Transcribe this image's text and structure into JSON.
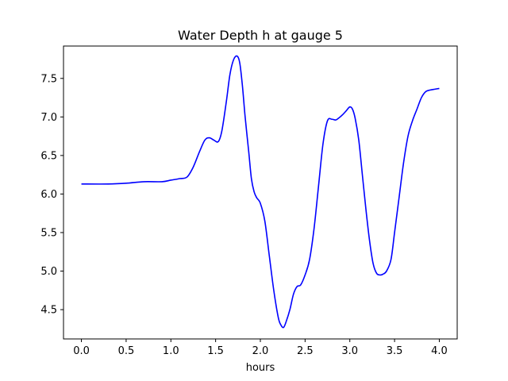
{
  "chart_data": {
    "type": "line",
    "title": "Water Depth h at gauge 5",
    "xlabel": "hours",
    "ylabel": "",
    "xlim": [
      -0.2,
      4.2
    ],
    "ylim": [
      4.12,
      7.92
    ],
    "x_ticks": [
      0.0,
      0.5,
      1.0,
      1.5,
      2.0,
      2.5,
      3.0,
      3.5,
      4.0
    ],
    "x_tick_labels": [
      "0.0",
      "0.5",
      "1.0",
      "1.5",
      "2.0",
      "2.5",
      "3.0",
      "3.5",
      "4.0"
    ],
    "y_ticks": [
      4.5,
      5.0,
      5.5,
      6.0,
      6.5,
      7.0,
      7.5
    ],
    "y_tick_labels": [
      "4.5",
      "5.0",
      "5.5",
      "6.0",
      "6.5",
      "7.0",
      "7.5"
    ],
    "grid": false,
    "legend": false,
    "series": [
      {
        "color": "#0000ff",
        "x": [
          0.0,
          0.3,
          0.5,
          0.7,
          0.9,
          1.0,
          1.1,
          1.18,
          1.25,
          1.32,
          1.38,
          1.43,
          1.48,
          1.53,
          1.57,
          1.62,
          1.66,
          1.7,
          1.74,
          1.77,
          1.8,
          1.83,
          1.87,
          1.9,
          1.93,
          1.96,
          2.0,
          2.05,
          2.1,
          2.15,
          2.2,
          2.23,
          2.26,
          2.29,
          2.33,
          2.37,
          2.41,
          2.45,
          2.5,
          2.55,
          2.6,
          2.65,
          2.7,
          2.75,
          2.8,
          2.84,
          2.87,
          2.92,
          2.96,
          3.0,
          3.03,
          3.06,
          3.1,
          3.14,
          3.18,
          3.22,
          3.26,
          3.3,
          3.34,
          3.37,
          3.41,
          3.46,
          3.5,
          3.55,
          3.6,
          3.65,
          3.7,
          3.75,
          3.8,
          3.85,
          3.9,
          3.95,
          4.0
        ],
        "y": [
          6.13,
          6.13,
          6.14,
          6.16,
          6.16,
          6.18,
          6.2,
          6.22,
          6.35,
          6.55,
          6.7,
          6.73,
          6.7,
          6.68,
          6.82,
          7.2,
          7.55,
          7.74,
          7.79,
          7.7,
          7.4,
          7.0,
          6.55,
          6.2,
          6.03,
          5.95,
          5.88,
          5.65,
          5.2,
          4.75,
          4.4,
          4.3,
          4.27,
          4.35,
          4.5,
          4.7,
          4.8,
          4.82,
          4.95,
          5.15,
          5.55,
          6.1,
          6.65,
          6.95,
          6.97,
          6.96,
          6.98,
          7.03,
          7.08,
          7.13,
          7.1,
          6.98,
          6.7,
          6.25,
          5.8,
          5.4,
          5.1,
          4.97,
          4.95,
          4.96,
          5.0,
          5.15,
          5.5,
          5.95,
          6.4,
          6.75,
          6.95,
          7.1,
          7.25,
          7.33,
          7.35,
          7.36,
          7.37
        ]
      }
    ]
  }
}
